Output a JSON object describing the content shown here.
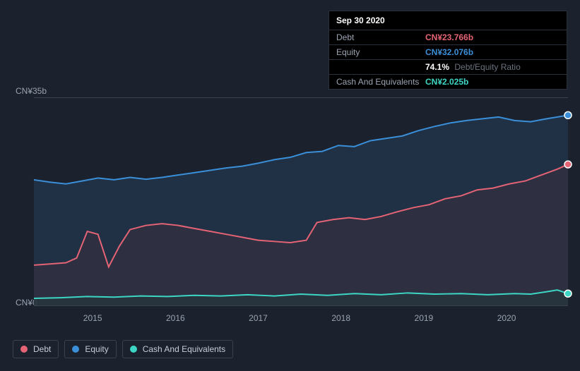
{
  "tooltip": {
    "date": "Sep 30 2020",
    "rows": [
      {
        "label": "Debt",
        "value": "CN¥23.766b",
        "color": "#e46374"
      },
      {
        "label": "Equity",
        "value": "CN¥32.076b",
        "color": "#3a8fd8"
      },
      {
        "label": "",
        "pct": "74.1%",
        "text": "Debt/Equity Ratio"
      },
      {
        "label": "Cash And Equivalents",
        "value": "CN¥2.025b",
        "color": "#3dd6c4"
      }
    ]
  },
  "chart": {
    "type": "area",
    "background_color": "#1b222d",
    "grid_color": "#3a4150",
    "y_axis": {
      "top_label": "CN¥35b",
      "bottom_label": "CN¥0",
      "ymin": 0,
      "ymax": 35,
      "label_color": "#9aa3b2",
      "label_fontsize": 12
    },
    "x_axis": {
      "ticks": [
        {
          "label": "2015",
          "pos": 0.11
        },
        {
          "label": "2016",
          "pos": 0.265
        },
        {
          "label": "2017",
          "pos": 0.42
        },
        {
          "label": "2018",
          "pos": 0.575
        },
        {
          "label": "2019",
          "pos": 0.73
        },
        {
          "label": "2020",
          "pos": 0.885
        }
      ],
      "label_color": "#9aa3b2",
      "label_fontsize": 12
    },
    "series": [
      {
        "name": "Equity",
        "stroke": "#3a8fd8",
        "fill": "#233b54",
        "fill_opacity": 0.65,
        "stroke_width": 2,
        "end_marker_color": "#3a8fd8",
        "data": [
          [
            0.0,
            21.2
          ],
          [
            0.03,
            20.8
          ],
          [
            0.06,
            20.5
          ],
          [
            0.09,
            21.0
          ],
          [
            0.12,
            21.5
          ],
          [
            0.15,
            21.2
          ],
          [
            0.18,
            21.6
          ],
          [
            0.21,
            21.3
          ],
          [
            0.24,
            21.6
          ],
          [
            0.27,
            22.0
          ],
          [
            0.3,
            22.4
          ],
          [
            0.33,
            22.8
          ],
          [
            0.36,
            23.2
          ],
          [
            0.39,
            23.5
          ],
          [
            0.42,
            24.0
          ],
          [
            0.45,
            24.6
          ],
          [
            0.48,
            25.0
          ],
          [
            0.51,
            25.8
          ],
          [
            0.54,
            26.0
          ],
          [
            0.57,
            27.0
          ],
          [
            0.6,
            26.8
          ],
          [
            0.63,
            27.8
          ],
          [
            0.66,
            28.2
          ],
          [
            0.69,
            28.6
          ],
          [
            0.72,
            29.5
          ],
          [
            0.75,
            30.2
          ],
          [
            0.78,
            30.8
          ],
          [
            0.81,
            31.2
          ],
          [
            0.84,
            31.5
          ],
          [
            0.87,
            31.8
          ],
          [
            0.9,
            31.2
          ],
          [
            0.93,
            31.0
          ],
          [
            0.96,
            31.5
          ],
          [
            1.0,
            32.1
          ]
        ]
      },
      {
        "name": "Debt",
        "stroke": "#e46374",
        "fill": "#3b2e3d",
        "fill_opacity": 0.55,
        "stroke_width": 2,
        "end_marker_color": "#e46374",
        "data": [
          [
            0.0,
            6.8
          ],
          [
            0.03,
            7.0
          ],
          [
            0.06,
            7.2
          ],
          [
            0.08,
            8.0
          ],
          [
            0.1,
            12.5
          ],
          [
            0.12,
            12.0
          ],
          [
            0.14,
            6.5
          ],
          [
            0.16,
            10.0
          ],
          [
            0.18,
            12.8
          ],
          [
            0.21,
            13.5
          ],
          [
            0.24,
            13.8
          ],
          [
            0.27,
            13.5
          ],
          [
            0.3,
            13.0
          ],
          [
            0.33,
            12.5
          ],
          [
            0.36,
            12.0
          ],
          [
            0.39,
            11.5
          ],
          [
            0.42,
            11.0
          ],
          [
            0.45,
            10.8
          ],
          [
            0.48,
            10.6
          ],
          [
            0.51,
            11.0
          ],
          [
            0.53,
            14.0
          ],
          [
            0.56,
            14.5
          ],
          [
            0.59,
            14.8
          ],
          [
            0.62,
            14.5
          ],
          [
            0.65,
            15.0
          ],
          [
            0.68,
            15.8
          ],
          [
            0.71,
            16.5
          ],
          [
            0.74,
            17.0
          ],
          [
            0.77,
            18.0
          ],
          [
            0.8,
            18.5
          ],
          [
            0.83,
            19.5
          ],
          [
            0.86,
            19.8
          ],
          [
            0.89,
            20.5
          ],
          [
            0.92,
            21.0
          ],
          [
            0.95,
            22.0
          ],
          [
            0.98,
            23.0
          ],
          [
            1.0,
            23.8
          ]
        ]
      },
      {
        "name": "Cash And Equivalents",
        "stroke": "#3dd6c4",
        "fill": "#1f3a3b",
        "fill_opacity": 0.5,
        "stroke_width": 2,
        "end_marker_color": "#3dd6c4",
        "data": [
          [
            0.0,
            1.2
          ],
          [
            0.05,
            1.3
          ],
          [
            0.1,
            1.5
          ],
          [
            0.15,
            1.4
          ],
          [
            0.2,
            1.6
          ],
          [
            0.25,
            1.5
          ],
          [
            0.3,
            1.7
          ],
          [
            0.35,
            1.6
          ],
          [
            0.4,
            1.8
          ],
          [
            0.45,
            1.6
          ],
          [
            0.5,
            1.9
          ],
          [
            0.55,
            1.7
          ],
          [
            0.6,
            2.0
          ],
          [
            0.65,
            1.8
          ],
          [
            0.7,
            2.1
          ],
          [
            0.75,
            1.9
          ],
          [
            0.8,
            2.0
          ],
          [
            0.85,
            1.8
          ],
          [
            0.9,
            2.0
          ],
          [
            0.93,
            1.9
          ],
          [
            0.96,
            2.3
          ],
          [
            0.98,
            2.6
          ],
          [
            1.0,
            2.0
          ]
        ]
      }
    ]
  },
  "legend": {
    "items": [
      {
        "label": "Debt",
        "color": "#e46374"
      },
      {
        "label": "Equity",
        "color": "#3a8fd8"
      },
      {
        "label": "Cash And Equivalents",
        "color": "#3dd6c4"
      }
    ],
    "border_color": "#3a4150",
    "text_color": "#c5ccd8",
    "fontsize": 12
  }
}
